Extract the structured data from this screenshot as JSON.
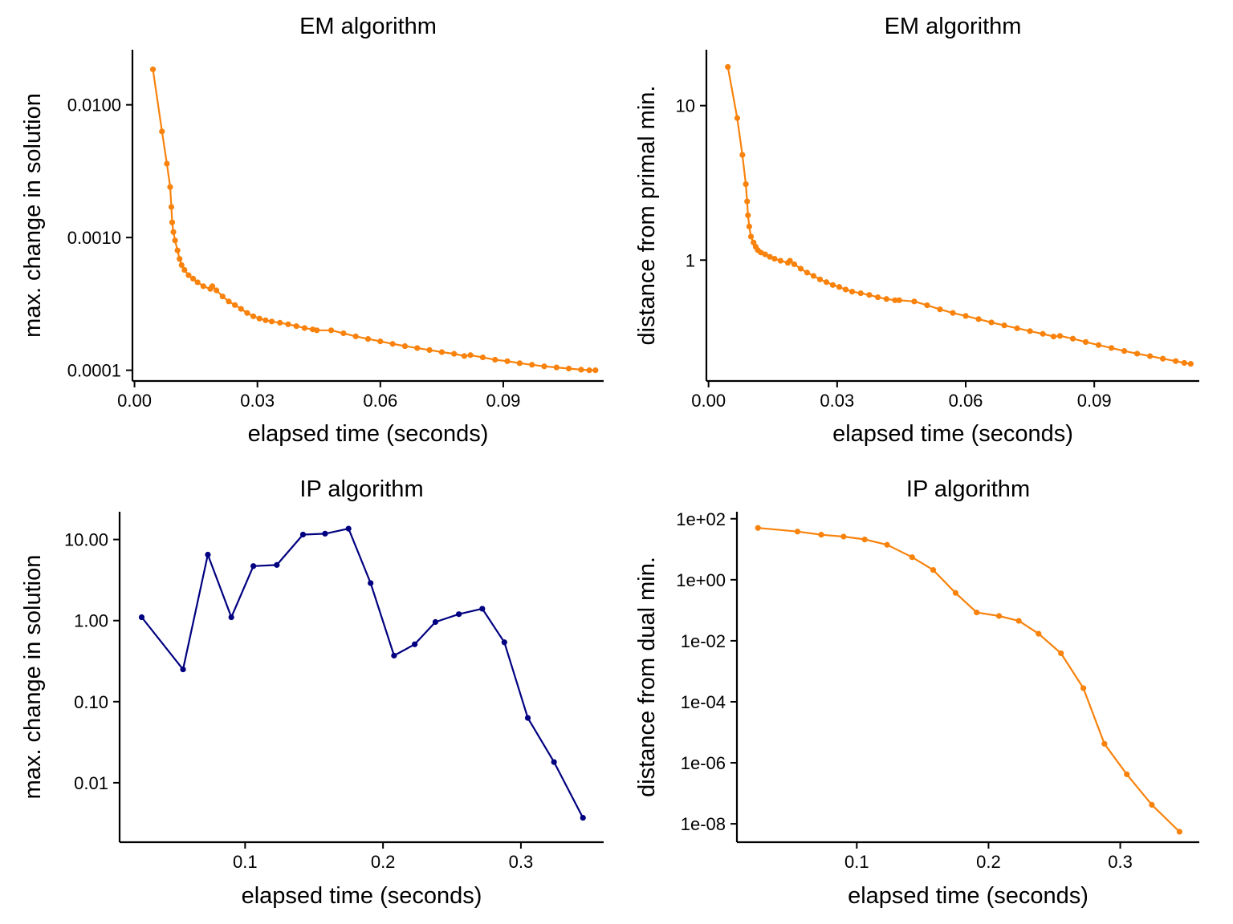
{
  "chart_data": [
    {
      "type": "line",
      "title": "EM algorithm",
      "xlabel": "elapsed time (seconds)",
      "ylabel": "max. change in solution",
      "yscale": "log",
      "xlim": [
        -0.0005,
        0.1145
      ],
      "ylim": [
        8.3e-05,
        0.026
      ],
      "xticks": [
        {
          "value": 0.0,
          "label": "0.00"
        },
        {
          "value": 0.03,
          "label": "0.03"
        },
        {
          "value": 0.06,
          "label": "0.06"
        },
        {
          "value": 0.09,
          "label": "0.09"
        }
      ],
      "yticks": [
        {
          "value": 0.0001,
          "label": "0.0001"
        },
        {
          "value": 0.001,
          "label": "0.0010"
        },
        {
          "value": 0.01,
          "label": "0.0100"
        }
      ],
      "grid": false,
      "color": "#F8820C",
      "series": [
        {
          "x": [
            0.0045,
            0.0067,
            0.0079,
            0.0087,
            0.009,
            0.0092,
            0.0095,
            0.0099,
            0.0105,
            0.011,
            0.0115,
            0.0122,
            0.0132,
            0.0143,
            0.0154,
            0.0168,
            0.0185,
            0.019,
            0.02,
            0.0215,
            0.023,
            0.0245,
            0.026,
            0.0275,
            0.029,
            0.0305,
            0.032,
            0.0335,
            0.0355,
            0.0375,
            0.0395,
            0.0415,
            0.0435,
            0.0445,
            0.048,
            0.051,
            0.054,
            0.057,
            0.06,
            0.063,
            0.066,
            0.069,
            0.072,
            0.075,
            0.078,
            0.0805,
            0.082,
            0.085,
            0.088,
            0.091,
            0.094,
            0.097,
            0.1,
            0.103,
            0.106,
            0.109,
            0.111,
            0.1125
          ],
          "y": [
            0.0185,
            0.0063,
            0.0036,
            0.0024,
            0.0017,
            0.0013,
            0.0011,
            0.00095,
            0.0008,
            0.00069,
            0.00062,
            0.00057,
            0.00052,
            0.00049,
            0.00046,
            0.00043,
            0.00041,
            0.00043,
            0.0004,
            0.00036,
            0.00033,
            0.00031,
            0.00029,
            0.00027,
            0.000255,
            0.000245,
            0.000238,
            0.000233,
            0.000228,
            0.000222,
            0.000215,
            0.000208,
            0.000203,
            0.0002,
            0.0002,
            0.00019,
            0.00018,
            0.000172,
            0.000165,
            0.000158,
            0.000152,
            0.000147,
            0.000142,
            0.000137,
            0.000133,
            0.000128,
            0.00013,
            0.000125,
            0.00012,
            0.000117,
            0.000113,
            0.00011,
            0.000107,
            0.000105,
            0.000103,
            0.000101,
            0.0001,
            0.0001
          ]
        }
      ]
    },
    {
      "type": "line",
      "title": "EM algorithm",
      "xlabel": "elapsed time (seconds)",
      "ylabel": "distance from primal min.",
      "yscale": "log",
      "xlim": [
        -0.0005,
        0.1145
      ],
      "ylim": [
        0.165,
        23
      ],
      "xticks": [
        {
          "value": 0.0,
          "label": "0.00"
        },
        {
          "value": 0.03,
          "label": "0.03"
        },
        {
          "value": 0.06,
          "label": "0.06"
        },
        {
          "value": 0.09,
          "label": "0.09"
        }
      ],
      "yticks": [
        {
          "value": 1,
          "label": "1"
        },
        {
          "value": 10,
          "label": "10"
        }
      ],
      "grid": false,
      "color": "#F8820C",
      "series": [
        {
          "x": [
            0.0045,
            0.0067,
            0.0079,
            0.0087,
            0.009,
            0.0092,
            0.0095,
            0.0099,
            0.0105,
            0.011,
            0.0115,
            0.0122,
            0.0132,
            0.0143,
            0.0154,
            0.0168,
            0.0185,
            0.019,
            0.02,
            0.0215,
            0.023,
            0.0245,
            0.026,
            0.0275,
            0.029,
            0.0305,
            0.032,
            0.0335,
            0.0355,
            0.0375,
            0.0395,
            0.0415,
            0.0435,
            0.0445,
            0.048,
            0.051,
            0.054,
            0.057,
            0.06,
            0.063,
            0.066,
            0.069,
            0.072,
            0.075,
            0.078,
            0.0805,
            0.082,
            0.085,
            0.088,
            0.091,
            0.094,
            0.097,
            0.1,
            0.103,
            0.106,
            0.109,
            0.111,
            0.1125
          ],
          "y": [
            17.8,
            8.3,
            4.8,
            3.1,
            2.4,
            1.95,
            1.65,
            1.42,
            1.3,
            1.22,
            1.16,
            1.12,
            1.09,
            1.05,
            1.02,
            0.99,
            0.96,
            0.99,
            0.94,
            0.88,
            0.83,
            0.79,
            0.75,
            0.72,
            0.69,
            0.67,
            0.645,
            0.625,
            0.61,
            0.595,
            0.575,
            0.56,
            0.55,
            0.55,
            0.54,
            0.51,
            0.48,
            0.455,
            0.435,
            0.415,
            0.395,
            0.378,
            0.362,
            0.347,
            0.333,
            0.32,
            0.323,
            0.31,
            0.295,
            0.282,
            0.27,
            0.258,
            0.248,
            0.239,
            0.23,
            0.222,
            0.216,
            0.213
          ]
        }
      ]
    },
    {
      "type": "line",
      "title": "IP algorithm",
      "xlabel": "elapsed time (seconds)",
      "ylabel": "max. change in solution",
      "yscale": "log",
      "xlim": [
        0.009,
        0.36
      ],
      "ylim": [
        0.00185,
        22
      ],
      "xticks": [
        {
          "value": 0.1,
          "label": "0.1"
        },
        {
          "value": 0.2,
          "label": "0.2"
        },
        {
          "value": 0.3,
          "label": "0.3"
        }
      ],
      "yticks": [
        {
          "value": 0.01,
          "label": "0.01"
        },
        {
          "value": 0.1,
          "label": "0.10"
        },
        {
          "value": 1,
          "label": "1.00"
        },
        {
          "value": 10,
          "label": "10.00"
        }
      ],
      "grid": false,
      "color": "#000080",
      "series": [
        {
          "x": [
            0.025,
            0.055,
            0.073,
            0.09,
            0.106,
            0.123,
            0.142,
            0.158,
            0.175,
            0.191,
            0.208,
            0.223,
            0.238,
            0.255,
            0.272,
            0.288,
            0.305,
            0.324,
            0.345
          ],
          "y": [
            1.1,
            0.25,
            6.5,
            1.1,
            4.7,
            4.85,
            11.5,
            11.8,
            13.6,
            2.9,
            0.37,
            0.51,
            0.96,
            1.2,
            1.4,
            0.54,
            0.063,
            0.018,
            0.0037
          ]
        }
      ]
    },
    {
      "type": "line",
      "title": "IP algorithm",
      "xlabel": "elapsed time (seconds)",
      "ylabel": "distance from dual min.",
      "yscale": "log",
      "xlim": [
        0.009,
        0.36
      ],
      "ylim": [
        2.5e-09,
        170
      ],
      "xticks": [
        {
          "value": 0.1,
          "label": "0.1"
        },
        {
          "value": 0.2,
          "label": "0.2"
        },
        {
          "value": 0.3,
          "label": "0.3"
        }
      ],
      "yticks": [
        {
          "value": 1e-08,
          "label": "1e-08"
        },
        {
          "value": 1e-06,
          "label": "1e-06"
        },
        {
          "value": 0.0001,
          "label": "1e-04"
        },
        {
          "value": 0.01,
          "label": "1e-02"
        },
        {
          "value": 1,
          "label": "1e+00"
        },
        {
          "value": 100,
          "label": "1e+02"
        }
      ],
      "grid": false,
      "color": "#F8820C",
      "series": [
        {
          "x": [
            0.025,
            0.055,
            0.073,
            0.09,
            0.106,
            0.123,
            0.142,
            0.158,
            0.175,
            0.191,
            0.208,
            0.223,
            0.238,
            0.255,
            0.272,
            0.288,
            0.305,
            0.324,
            0.345
          ],
          "y": [
            50,
            38,
            30,
            26,
            21,
            14,
            5.5,
            2.1,
            0.37,
            0.085,
            0.065,
            0.045,
            0.017,
            0.0039,
            0.00028,
            4.2e-06,
            4.2e-07,
            4.2e-08,
            5.5e-09
          ]
        }
      ]
    }
  ]
}
